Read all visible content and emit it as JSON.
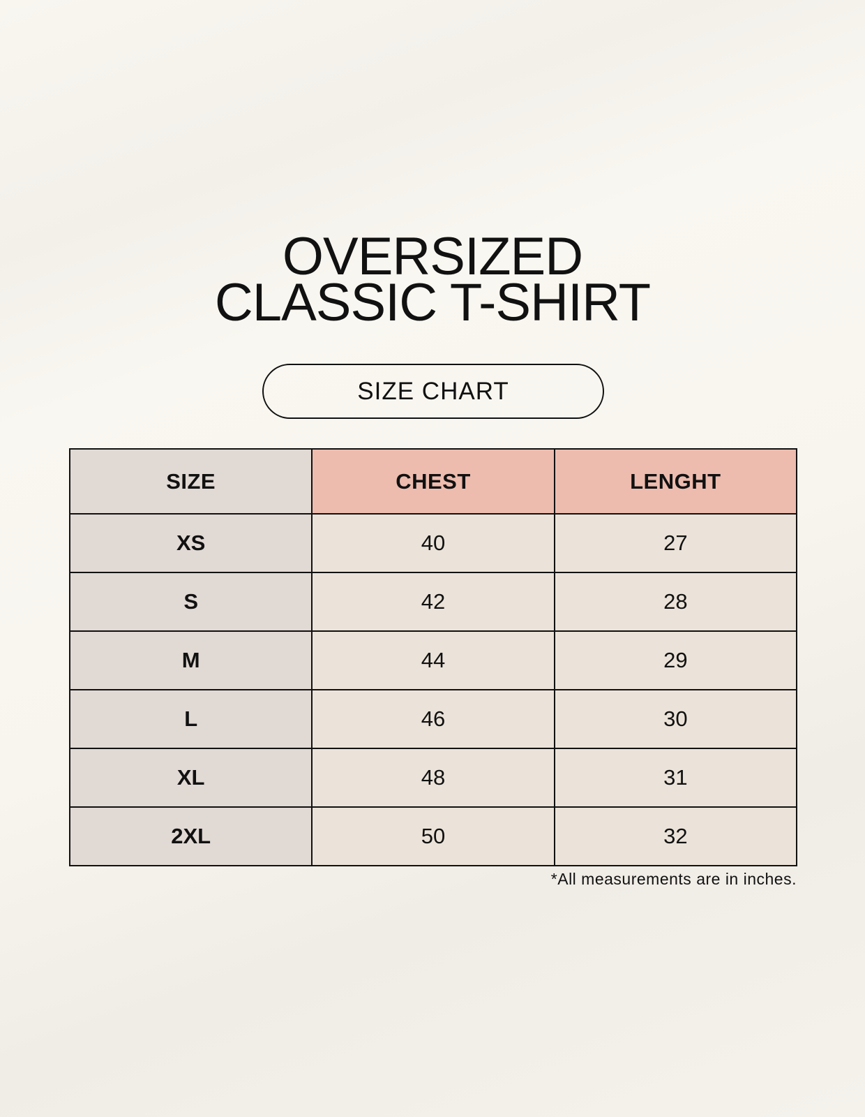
{
  "title": {
    "line1": "OVERSIZED",
    "line2": "CLASSIC T-SHIRT"
  },
  "subtitle": "SIZE CHART",
  "table": {
    "headers": [
      "SIZE",
      "CHEST",
      "LENGHT"
    ],
    "rows": [
      [
        "XS",
        "40",
        "27"
      ],
      [
        "S",
        "42",
        "28"
      ],
      [
        "M",
        "44",
        "29"
      ],
      [
        "L",
        "46",
        "30"
      ],
      [
        "XL",
        "48",
        "31"
      ],
      [
        "2XL",
        "50",
        "32"
      ]
    ]
  },
  "footnote": "*All measurements are in inches.",
  "colors": {
    "size_column": "#e1d9d4",
    "header_accent": "#edbcaf",
    "value_cells": "#ebe3d9"
  }
}
